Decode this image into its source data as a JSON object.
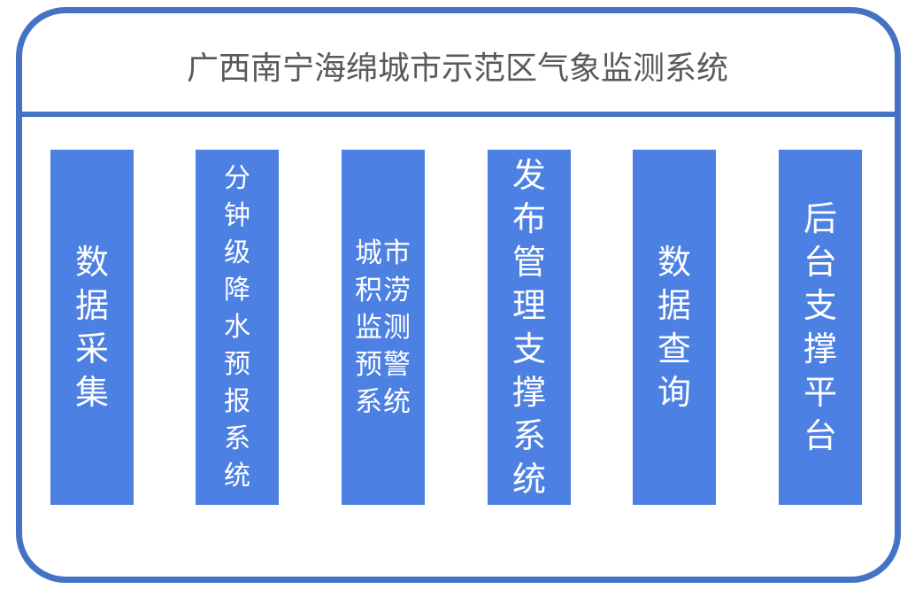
{
  "title": "广西南宁海绵城市示范区气象监测系统",
  "modules": [
    {
      "label": "数据采集"
    },
    {
      "label": "分钟级降水预报系统"
    },
    {
      "label": "城市积涝监测预警系统"
    },
    {
      "label": "发布管理支撑系统"
    },
    {
      "label": "数据查询"
    },
    {
      "label": "后台支撑平台"
    }
  ],
  "colors": {
    "border": "#4472c4",
    "box": "#4d80e3",
    "title": "#595959"
  }
}
